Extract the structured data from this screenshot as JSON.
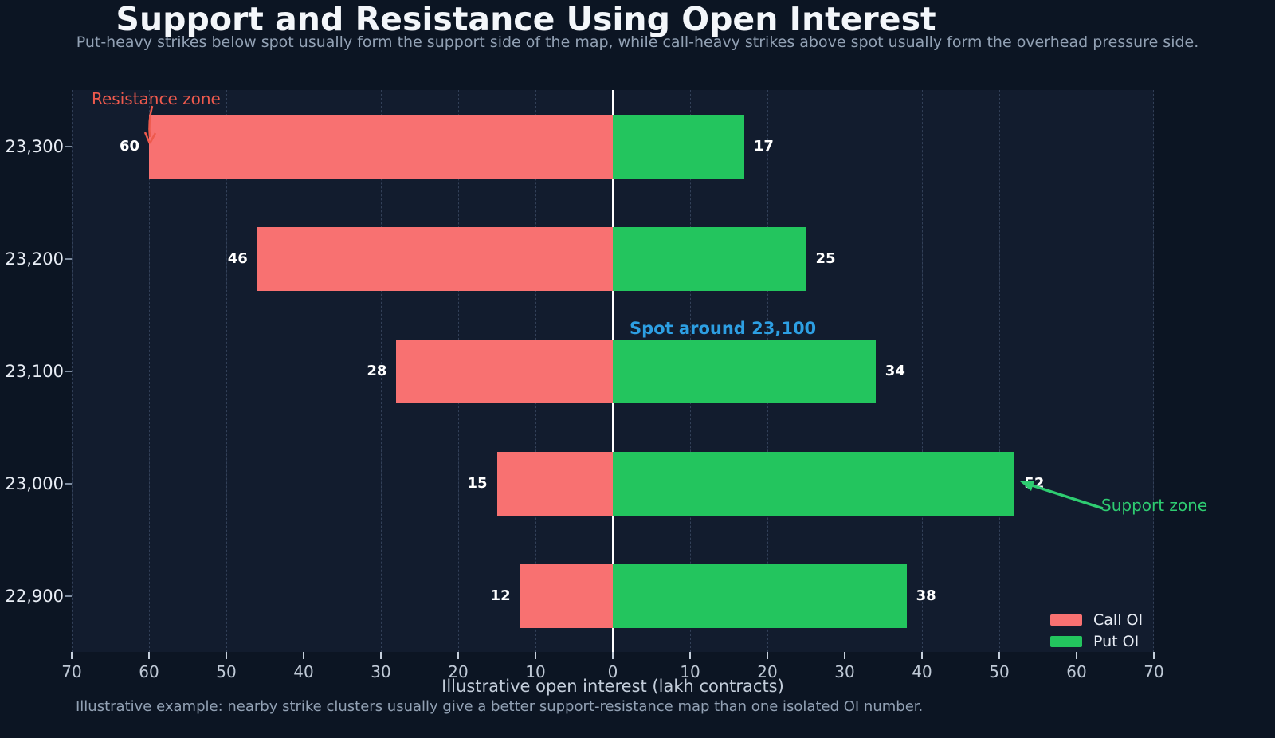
{
  "header": {
    "title": "Support and Resistance Using Open Interest",
    "subtitle": "Put-heavy strikes below spot usually form the support side of the map, while call-heavy strikes above spot usually form the overhead pressure side."
  },
  "chart_data": {
    "type": "bar",
    "variant": "diverging-horizontal",
    "title": "Support and Resistance Using Open Interest",
    "xlabel": "Illustrative open interest (lakh contracts)",
    "categories": [
      "23,300",
      "23,200",
      "23,100",
      "23,000",
      "22,900"
    ],
    "series": [
      {
        "name": "Call OI",
        "side": "left",
        "color": "#f87171",
        "values": [
          60,
          46,
          28,
          15,
          12
        ]
      },
      {
        "name": "Put OI",
        "side": "right",
        "color": "#23c55e",
        "values": [
          17,
          25,
          34,
          52,
          38
        ]
      }
    ],
    "xlim": [
      -70,
      70
    ],
    "x_tick_labels": [
      "70",
      "60",
      "50",
      "40",
      "30",
      "20",
      "10",
      "0",
      "10",
      "20",
      "30",
      "40",
      "50",
      "60",
      "70"
    ],
    "grid": "vertical-dashed",
    "plot_bg": "#121c2e",
    "figure_bg": "#0c1523",
    "spot_line": {
      "x": 0,
      "color": "#ffffff",
      "label": "Spot around 23,100",
      "label_color": "#2d9fe3"
    },
    "legend": {
      "position": "lower-right",
      "items": [
        {
          "label": "Call OI",
          "color": "#f87171"
        },
        {
          "label": "Put OI",
          "color": "#23c55e"
        }
      ]
    },
    "annotations": [
      {
        "id": "resistance",
        "text": "Resistance zone",
        "color": "#ee5a4d",
        "arrow": "down-to-call-bar-60"
      },
      {
        "id": "support",
        "text": "Support zone",
        "color": "#2ecc71",
        "arrow": "left-to-put-bar-52"
      }
    ]
  },
  "footer": {
    "note": "Illustrative example: nearby strike clusters usually give a better support-resistance map than one isolated OI number."
  }
}
